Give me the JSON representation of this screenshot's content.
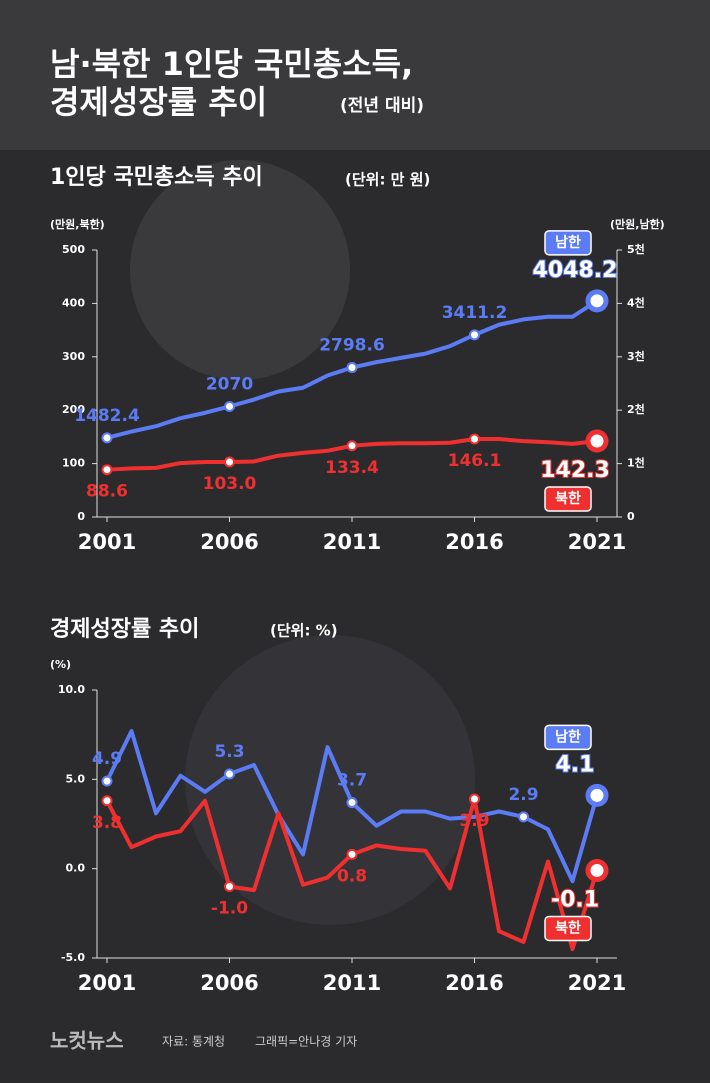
{
  "header": {
    "title_line1": "남·북한 1인당 국민총소득,",
    "title_line2": "경제성장률 추이",
    "title_note": "(전년 대비)"
  },
  "chart_data": [
    {
      "type": "line",
      "title": "1인당 국민총소득 추이",
      "subtitle": "(단위: 만 원)",
      "ylabel": "(만원,북한)",
      "y2label": "(만원,남한)",
      "x": [
        2001,
        2002,
        2003,
        2004,
        2005,
        2006,
        2007,
        2008,
        2009,
        2010,
        2011,
        2012,
        2013,
        2014,
        2015,
        2016,
        2017,
        2018,
        2019,
        2020,
        2021
      ],
      "xlim": [
        2001,
        2021
      ],
      "xticks": [
        2001,
        2006,
        2011,
        2016,
        2021
      ],
      "ylim": [
        0,
        500
      ],
      "yticks": [
        0,
        100,
        200,
        300,
        400,
        500
      ],
      "y2lim": [
        0,
        5000
      ],
      "y2ticks": [
        0,
        {
          "value": 1000,
          "label": "1천"
        },
        {
          "value": 2000,
          "label": "2천"
        },
        {
          "value": 3000,
          "label": "3천"
        },
        {
          "value": 4000,
          "label": "4천"
        },
        {
          "value": 5000,
          "label": "5천"
        }
      ],
      "series": [
        {
          "name": "남한",
          "color": "#5b7cf5",
          "axis": "y2",
          "values": [
            1482.4,
            1600,
            1700,
            1850,
            1950,
            2070,
            2200,
            2350,
            2420,
            2650,
            2798.6,
            2900,
            2980,
            3060,
            3200,
            3411.2,
            3600,
            3700,
            3750,
            3750,
            4048.2
          ],
          "value_labels": [
            "1482.4",
            null,
            null,
            null,
            null,
            "2070",
            null,
            null,
            null,
            null,
            "2798.6",
            null,
            null,
            null,
            null,
            "3411.2",
            null,
            null,
            null,
            null,
            "4048.2"
          ]
        },
        {
          "name": "북한",
          "color": "#f03030",
          "values": [
            88.6,
            91,
            92,
            101,
            103,
            103.0,
            104,
            115,
            120,
            124,
            133.4,
            137,
            138,
            138,
            139,
            146.1,
            146,
            142,
            140,
            137,
            142.3
          ],
          "value_labels": [
            "88.6",
            null,
            null,
            null,
            null,
            "103.0",
            null,
            null,
            null,
            null,
            "133.4",
            null,
            null,
            null,
            null,
            "146.1",
            null,
            null,
            null,
            null,
            "142.3"
          ]
        }
      ]
    },
    {
      "type": "line",
      "title": "경제성장률 추이",
      "subtitle": "(단위: %)",
      "ylabel": "(%)",
      "x": [
        2001,
        2002,
        2003,
        2004,
        2005,
        2006,
        2007,
        2008,
        2009,
        2010,
        2011,
        2012,
        2013,
        2014,
        2015,
        2016,
        2017,
        2018,
        2019,
        2020,
        2021
      ],
      "xlim": [
        2001,
        2021
      ],
      "xticks": [
        2001,
        2006,
        2011,
        2016,
        2021
      ],
      "ylim": [
        -5,
        10
      ],
      "yticks": [
        {
          "value": -5,
          "label": "-5.0"
        },
        {
          "value": 0,
          "label": "0.0"
        },
        {
          "value": 5,
          "label": "5.0"
        },
        {
          "value": 10,
          "label": "10.0"
        }
      ],
      "series": [
        {
          "name": "남한",
          "color": "#5b7cf5",
          "values": [
            4.9,
            7.7,
            3.1,
            5.2,
            4.3,
            5.3,
            5.8,
            3.0,
            0.8,
            6.8,
            3.7,
            2.4,
            3.2,
            3.2,
            2.8,
            2.9,
            3.2,
            2.9,
            2.2,
            -0.7,
            4.1
          ],
          "value_labels": [
            "4.9",
            null,
            null,
            null,
            null,
            "5.3",
            null,
            null,
            null,
            null,
            "3.7",
            null,
            null,
            null,
            null,
            null,
            null,
            "2.9",
            null,
            null,
            "4.1"
          ]
        },
        {
          "name": "북한",
          "color": "#f03030",
          "values": [
            3.8,
            1.2,
            1.8,
            2.1,
            3.8,
            -1.0,
            -1.2,
            3.1,
            -0.9,
            -0.5,
            0.8,
            1.3,
            1.1,
            1.0,
            -1.1,
            3.9,
            -3.5,
            -4.1,
            0.4,
            -4.5,
            -0.1
          ],
          "value_labels": [
            "3.8",
            null,
            null,
            null,
            null,
            "-1.0",
            null,
            null,
            null,
            null,
            "0.8",
            null,
            null,
            null,
            null,
            "3.9",
            null,
            null,
            null,
            null,
            "-0.1"
          ]
        }
      ]
    }
  ],
  "footer": {
    "logo": "노컷뉴스",
    "source": "자료: 통계청",
    "credit": "그래픽=안나경 기자"
  }
}
